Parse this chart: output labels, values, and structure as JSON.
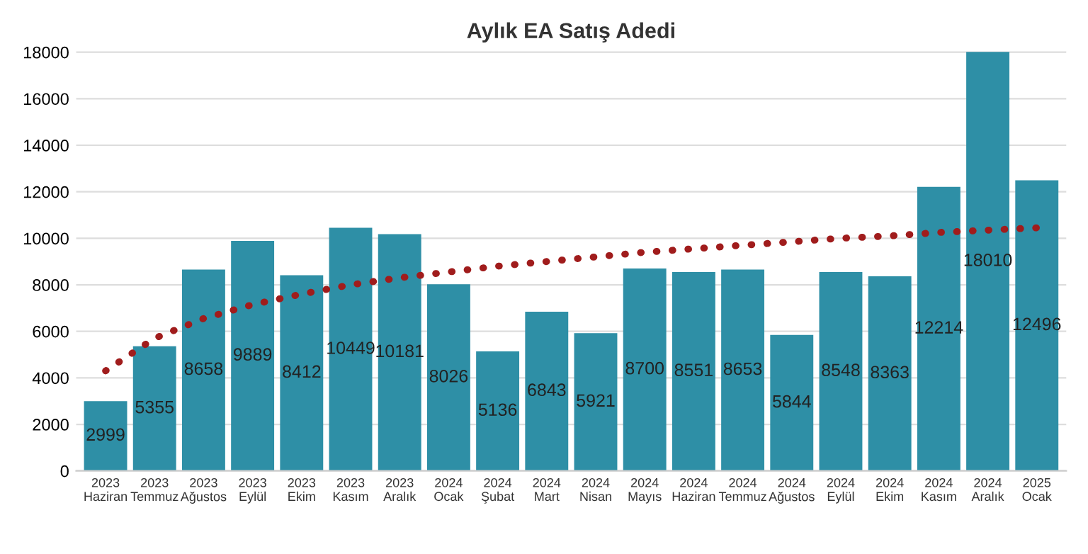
{
  "chart_data": {
    "type": "bar",
    "title": "Aylık EA Satış Adedi",
    "categories": [
      "2023\nHaziran",
      "2023\nTemmuz",
      "2023\nAğustos",
      "2023\nEylül",
      "2023\nEkim",
      "2023\nKasım",
      "2023\nAralık",
      "2024\nOcak",
      "2024\nŞubat",
      "2024\nMart",
      "2024\nNisan",
      "2024\nMayıs",
      "2024\nHaziran",
      "2024\nTemmuz",
      "2024\nAğustos",
      "2024\nEylül",
      "2024\nEkim",
      "2024\nKasım",
      "2024\nAralık",
      "2025\nOcak"
    ],
    "series": [
      {
        "color": "#2e8fa6",
        "values": [
          2999,
          5355,
          8658,
          9889,
          8412,
          10449,
          10181,
          8026,
          5136,
          6843,
          5921,
          8700,
          8551,
          8653,
          5844,
          8548,
          8363,
          12214,
          18010,
          12496
        ],
        "value_labels": [
          "2999",
          "5355",
          "8658",
          "9889",
          "8412",
          "10449",
          "10181",
          "8026",
          "5136",
          "6843",
          "5921",
          "8700",
          "8551",
          "8653",
          "5844",
          "8548",
          "8363",
          "12214",
          "18010",
          "12496"
        ]
      },
      {
        "type": "line",
        "color": "#a01c1c",
        "line_style": "dotted",
        "values": [
          4300,
          5700,
          6550,
          7150,
          7600,
          8000,
          8300,
          8550,
          8800,
          9000,
          9200,
          9400,
          9550,
          9700,
          9850,
          10000,
          10100,
          10250,
          10350,
          10450
        ]
      }
    ],
    "ylim": [
      0,
      18100
    ],
    "yticks": [
      0,
      2000,
      4000,
      6000,
      8000,
      10000,
      12000,
      14000,
      16000,
      18000
    ],
    "grid": "y",
    "legend": false
  }
}
